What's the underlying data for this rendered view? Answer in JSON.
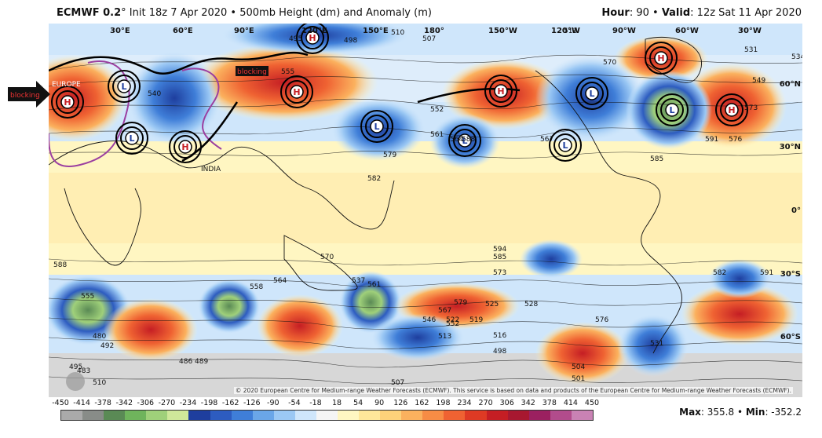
{
  "header": {
    "model": "ECMWF 0.2",
    "degree": "°",
    "init_text": "Init 18z 7 Apr 2020 • 500mb Height (dm) and Anomaly (m)",
    "hour_label": "Hour",
    "hour_value": ": 90 • ",
    "valid_label": "Valid",
    "valid_value": ": 12z Sat 11 Apr 2020"
  },
  "map": {
    "lon_labels": [
      "30°E",
      "60°E",
      "90°E",
      "120°E",
      "150°E",
      "180°",
      "150°W",
      "120°W",
      "90°W",
      "60°W",
      "30°W"
    ],
    "lat_labels": [
      "60°N",
      "30°N",
      "0°",
      "30°S",
      "60°S"
    ],
    "region_labels": [
      "EUROPE",
      "INDIA"
    ],
    "blocking_labels": [
      "blocking",
      "blocking"
    ],
    "centers": [
      "H",
      "L",
      "L",
      "H",
      "H",
      "H",
      "L",
      "L",
      "H",
      "L",
      "L",
      "H",
      "L",
      "H",
      "L"
    ],
    "contour_labels": [
      "495",
      "498",
      "507",
      "510",
      "513",
      "531",
      "534",
      "540",
      "549",
      "552",
      "555",
      "561",
      "564",
      "567",
      "570",
      "573",
      "576",
      "579",
      "582",
      "585",
      "588",
      "591",
      "594",
      "495",
      "480",
      "483",
      "486",
      "489",
      "492",
      "498",
      "501",
      "504",
      "507",
      "510",
      "513",
      "516",
      "519",
      "522",
      "525",
      "528",
      "531",
      "537",
      "546",
      "552",
      "555",
      "558",
      "561",
      "564",
      "567",
      "570",
      "573",
      "576",
      "579",
      "582",
      "585",
      "588",
      "591"
    ],
    "copyright": "© 2020 European Centre for Medium-range Weather Forecasts (ECMWF). This service is based on data and products of the European Centre for Medium-range Weather Forecasts (ECMWF)."
  },
  "colorbar": {
    "ticks": [
      "-450",
      "-414",
      "-378",
      "-342",
      "-306",
      "-270",
      "-234",
      "-198",
      "-162",
      "-126",
      "-90",
      "-54",
      "-18",
      "18",
      "54",
      "90",
      "126",
      "162",
      "198",
      "234",
      "270",
      "306",
      "342",
      "378",
      "414",
      "450"
    ],
    "colors": [
      "#aaaaaa",
      "#888c88",
      "#5a8a55",
      "#6fb45c",
      "#9fd07a",
      "#cfe89a",
      "#1e3e9e",
      "#2d5cc0",
      "#3f7ed8",
      "#6aa6e8",
      "#9bc8f4",
      "#cfe6fb",
      "#f5f5f5",
      "#fff6c2",
      "#ffe79a",
      "#fdd27a",
      "#fbb15e",
      "#f78c45",
      "#ef6232",
      "#de3a24",
      "#c51e24",
      "#a81830",
      "#9b2060",
      "#b24c8c",
      "#c982b4"
    ]
  },
  "maxmin": {
    "max_label": "Max",
    "max_value": ": 355.8 • ",
    "min_label": "Min",
    "min_value": ": -352.2"
  }
}
